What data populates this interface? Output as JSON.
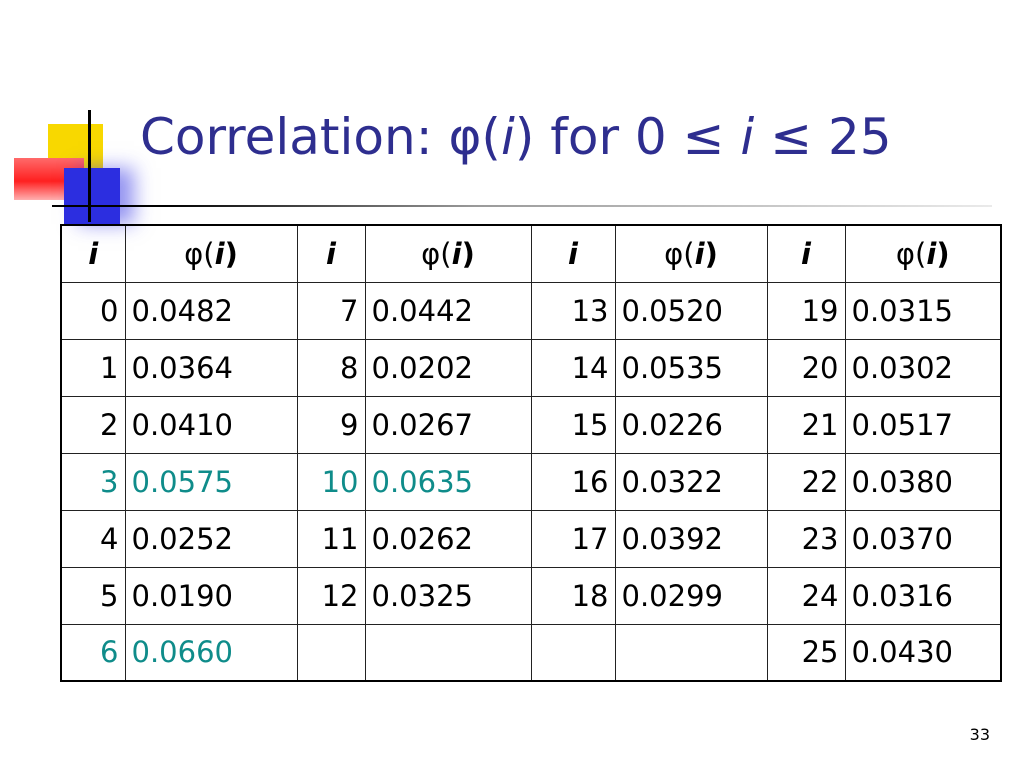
{
  "slide": {
    "title_prefix": "Correlation: ",
    "title_phi": "φ(",
    "title_i": "i",
    "title_mid": ") for 0 ≤ ",
    "title_i2": "i",
    "title_suffix": " ≤ 25",
    "page_number": "33"
  },
  "table": {
    "header": {
      "i": "i",
      "phi": "φ(",
      "phi_i": "i",
      "phi_close": ")"
    },
    "highlight_color": "#0f8c8a",
    "rows": [
      [
        {
          "i": "0",
          "v": "0.0482",
          "hl": false
        },
        {
          "i": "7",
          "v": "0.0442",
          "hl": false
        },
        {
          "i": "13",
          "v": "0.0520",
          "hl": false
        },
        {
          "i": "19",
          "v": "0.0315",
          "hl": false
        }
      ],
      [
        {
          "i": "1",
          "v": "0.0364",
          "hl": false
        },
        {
          "i": "8",
          "v": "0.0202",
          "hl": false
        },
        {
          "i": "14",
          "v": "0.0535",
          "hl": false
        },
        {
          "i": "20",
          "v": "0.0302",
          "hl": false
        }
      ],
      [
        {
          "i": "2",
          "v": "0.0410",
          "hl": false
        },
        {
          "i": "9",
          "v": "0.0267",
          "hl": false
        },
        {
          "i": "15",
          "v": "0.0226",
          "hl": false
        },
        {
          "i": "21",
          "v": "0.0517",
          "hl": false
        }
      ],
      [
        {
          "i": "3",
          "v": "0.0575",
          "hl": true
        },
        {
          "i": "10",
          "v": "0.0635",
          "hl": true
        },
        {
          "i": "16",
          "v": "0.0322",
          "hl": false
        },
        {
          "i": "22",
          "v": "0.0380",
          "hl": false
        }
      ],
      [
        {
          "i": "4",
          "v": "0.0252",
          "hl": false
        },
        {
          "i": "11",
          "v": "0.0262",
          "hl": false
        },
        {
          "i": "17",
          "v": "0.0392",
          "hl": false
        },
        {
          "i": "23",
          "v": "0.0370",
          "hl": false
        }
      ],
      [
        {
          "i": "5",
          "v": "0.0190",
          "hl": false
        },
        {
          "i": "12",
          "v": "0.0325",
          "hl": false
        },
        {
          "i": "18",
          "v": "0.0299",
          "hl": false
        },
        {
          "i": "24",
          "v": "0.0316",
          "hl": false
        }
      ],
      [
        {
          "i": "6",
          "v": "0.0660",
          "hl": true
        },
        {
          "i": "",
          "v": "",
          "hl": false
        },
        {
          "i": "",
          "v": "",
          "hl": false
        },
        {
          "i": "25",
          "v": "0.0430",
          "hl": false
        }
      ]
    ]
  }
}
